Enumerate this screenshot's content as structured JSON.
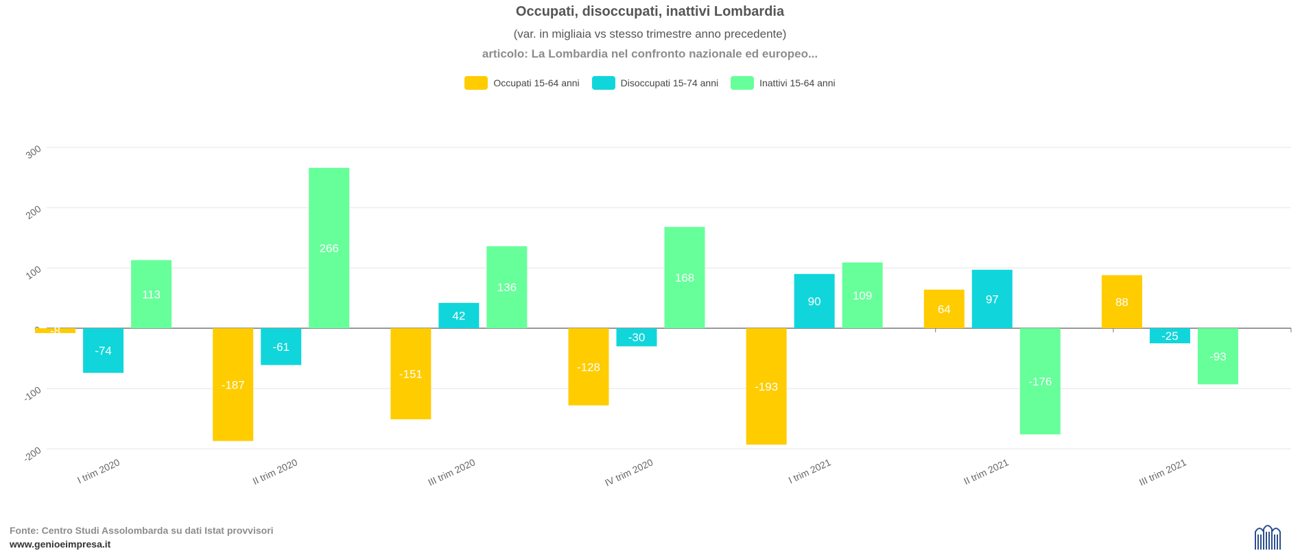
{
  "colors": {
    "occupati": "#ffcc00",
    "disoccupati": "#10d6db",
    "inattivi": "#66ff99"
  },
  "chart_data": {
    "type": "bar",
    "title": "Occupati, disoccupati, inattivi Lombardia",
    "subtitle": "(var. in migliaia vs stesso trimestre anno precedente)",
    "article": "articolo: La Lombardia nel confronto nazionale ed europeo...",
    "categories": [
      "I trim 2020",
      "II trim 2020",
      "III trim 2020",
      "IV trim 2020",
      "I trim 2021",
      "II trim 2021",
      "III trim 2021"
    ],
    "series": [
      {
        "name": "Occupati 15-64 anni",
        "color": "#ffcc00",
        "values": [
          -8,
          -187,
          -151,
          -128,
          -193,
          64,
          88
        ]
      },
      {
        "name": "Disoccupati 15-74 anni",
        "color": "#10d6db",
        "values": [
          -74,
          -61,
          42,
          -30,
          90,
          97,
          -25
        ]
      },
      {
        "name": "Inattivi 15-64 anni",
        "color": "#66ff99",
        "values": [
          113,
          266,
          136,
          168,
          109,
          -176,
          -93
        ]
      }
    ],
    "ylim": [
      -200,
      300
    ],
    "yticks": [
      300,
      200,
      100,
      0,
      -100,
      -200
    ],
    "grid": true,
    "legend": "top-center"
  },
  "footer": {
    "source": "Fonte: Centro Studi Assolombarda su dati Istat provvisori",
    "site": "www.genioeimpresa.it"
  },
  "logo_icon": "assolombarda-logo-icon"
}
